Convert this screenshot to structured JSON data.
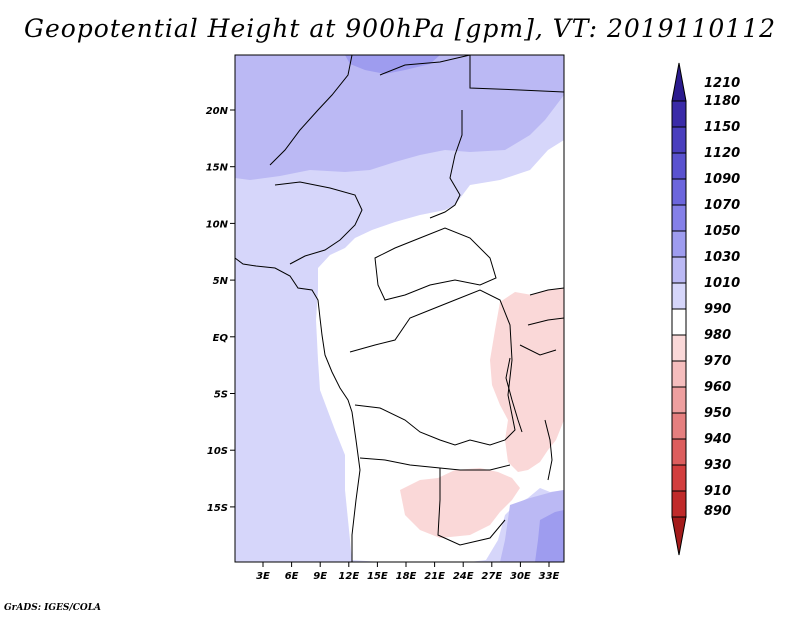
{
  "title": "Geopotential Height at 900hPa [gpm], VT: 2019110112",
  "credit": "GrADS: IGES/COLA",
  "map": {
    "lat_labels": [
      "20N",
      "15N",
      "10N",
      "5N",
      "EQ",
      "5S",
      "10S",
      "15S"
    ],
    "lon_labels": [
      "3E",
      "6E",
      "9E",
      "12E",
      "15E",
      "18E",
      "21E",
      "24E",
      "27E",
      "30E",
      "33E"
    ]
  },
  "colorbar": {
    "levels": [
      "1210",
      "1180",
      "1150",
      "1120",
      "1090",
      "1070",
      "1050",
      "1030",
      "1010",
      "990",
      "980",
      "970",
      "960",
      "950",
      "940",
      "930",
      "910",
      "890"
    ],
    "colors": [
      "#2b1b8e",
      "#3a2ba8",
      "#4a3fbe",
      "#5a52cf",
      "#6c66dd",
      "#8580e8",
      "#9e9cef",
      "#bbb9f4",
      "#d6d6fa",
      "#ffffff",
      "#fad8d8",
      "#f5bdbd",
      "#ee9f9f",
      "#e57f7f",
      "#dc5e5e",
      "#d23e3e",
      "#c02a2a",
      "#a41b1b"
    ]
  }
}
